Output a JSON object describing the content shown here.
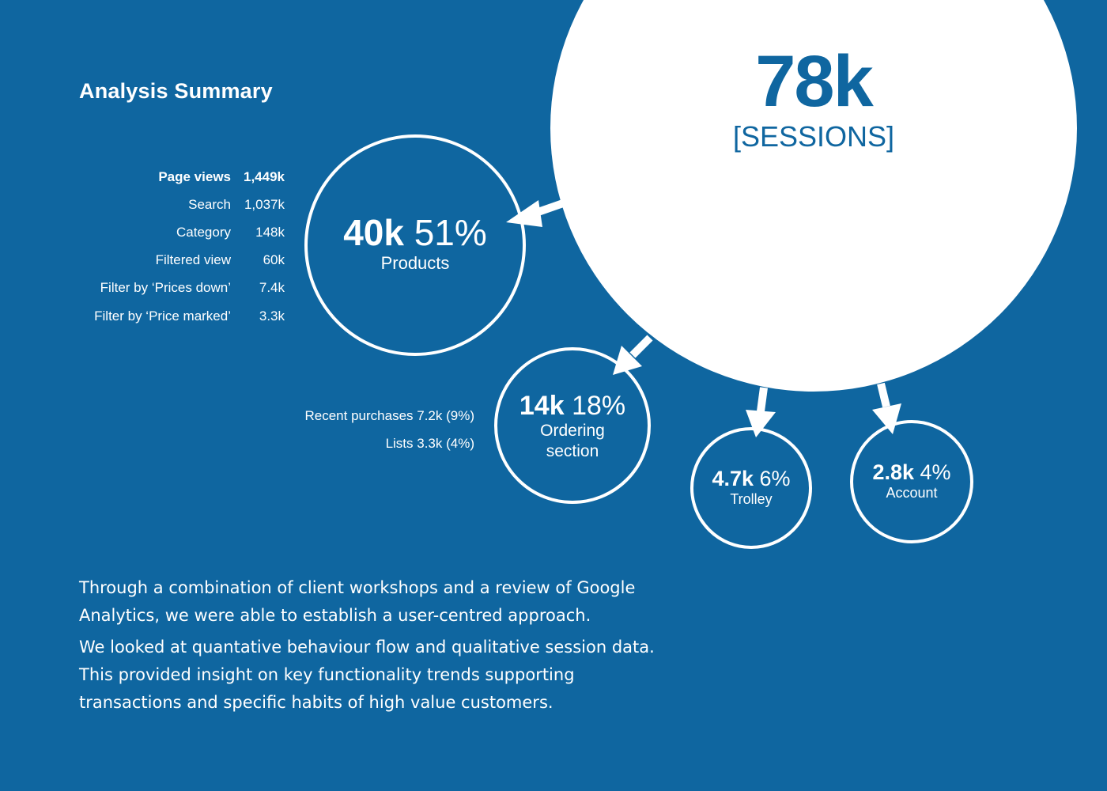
{
  "title": "Analysis Summary",
  "stats": [
    {
      "label": "Page views",
      "value": "1,449k",
      "strong": true
    },
    {
      "label": "Search",
      "value": "1,037k"
    },
    {
      "label": "Category",
      "value": "148k"
    },
    {
      "label": "Filtered view",
      "value": "60k"
    },
    {
      "label": "Filter by ‘Prices down’",
      "value": "7.4k"
    },
    {
      "label": "Filter by ‘Price marked’",
      "value": "3.3k"
    }
  ],
  "ordering_breakdown": [
    "Recent purchases 7.2k (9%)",
    "Lists 3.3k (4%)"
  ],
  "sessions": {
    "value": "78k",
    "caption": "[SESSIONS]"
  },
  "bubbles": {
    "products": {
      "value": "40k",
      "percent": "51%",
      "label": "Products"
    },
    "ordering": {
      "value": "14k",
      "percent": "18%",
      "label_line1": "Ordering",
      "label_line2": "section"
    },
    "trolley": {
      "value": "4.7k",
      "percent": "6%",
      "label": "Trolley"
    },
    "account": {
      "value": "2.8k",
      "percent": "4%",
      "label": "Account"
    }
  },
  "paragraphs": [
    "Through a combination of client workshops and a review of Google Analytics, we were able to establish a user-centred approach.",
    "We looked at quantative behaviour flow and qualitative session data. This provided insight on key functionality trends supporting transactions and specific habits of high value customers."
  ],
  "colors": {
    "background": "#0f66a0",
    "foreground": "#ffffff"
  }
}
